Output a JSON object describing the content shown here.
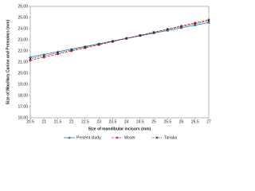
{
  "chart_data": {
    "type": "line",
    "x_label": "Size of mandibular incisors (mm)",
    "y_label": "Size of Maxillary Canine and Premolars (mm)",
    "x": [
      20.5,
      21,
      21.5,
      22,
      22.5,
      23,
      23.5,
      24,
      24.5,
      25,
      25.5,
      26,
      26.5,
      27
    ],
    "xlim": [
      20.5,
      27
    ],
    "xticks": [
      20.5,
      21,
      21.5,
      22,
      22.5,
      23,
      23.5,
      24,
      24.5,
      25,
      25.5,
      26,
      26.5,
      27
    ],
    "ylim": [
      16,
      26
    ],
    "yticks": [
      {
        "value": 16,
        "label": "16.00"
      },
      {
        "value": 17,
        "label": "17.00"
      },
      {
        "value": 18,
        "label": "18.00"
      },
      {
        "value": 19,
        "label": "19.00"
      },
      {
        "value": 20,
        "label": "20.00"
      },
      {
        "value": 21,
        "label": "21.00"
      },
      {
        "value": 22,
        "label": "22.00"
      },
      {
        "value": 23,
        "label": "23.00"
      },
      {
        "value": 24,
        "label": "24.00"
      },
      {
        "value": 25,
        "label": "25.00"
      },
      {
        "value": 26,
        "label": "26.00"
      }
    ],
    "grid": false,
    "legend": "bottom",
    "series": [
      {
        "name": "Present study",
        "color": "#2e75b6",
        "marker": "triangle",
        "dash": "solid",
        "values": [
          21.45,
          21.69,
          21.93,
          22.17,
          22.4,
          22.64,
          22.88,
          23.12,
          23.36,
          23.6,
          23.83,
          24.07,
          24.31,
          24.55
        ]
      },
      {
        "name": "Moser",
        "color": "#d9262c",
        "marker": "circle",
        "dash": "dashed",
        "values": [
          21.15,
          21.43,
          21.71,
          21.99,
          22.27,
          22.55,
          22.83,
          23.12,
          23.4,
          23.68,
          23.96,
          24.24,
          24.52,
          24.8
        ]
      },
      {
        "name": "Tanaka",
        "color": "#222222",
        "marker": "cross",
        "dash": "dotted",
        "values": [
          21.3,
          21.56,
          21.82,
          22.08,
          22.35,
          22.61,
          22.87,
          23.13,
          23.39,
          23.65,
          23.92,
          24.18,
          24.44,
          24.7
        ]
      }
    ]
  }
}
